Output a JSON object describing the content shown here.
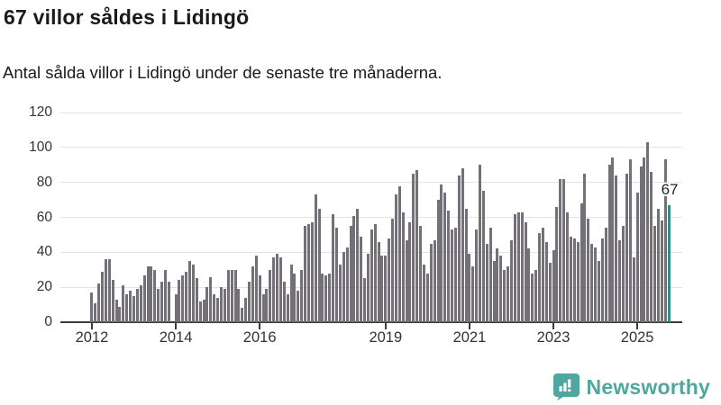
{
  "header": {
    "title": "67 villor såldes i Lidingö",
    "subtitle": "Antal sålda villor i Lidingö under de senaste tre månaderna."
  },
  "chart_data": {
    "type": "bar",
    "title": "67 villor såldes i Lidingö",
    "ylabel": "",
    "xlabel": "",
    "ylim": [
      0,
      120
    ],
    "grid": true,
    "y_ticks": [
      0,
      20,
      40,
      60,
      80,
      100,
      120
    ],
    "x_start": "2012-01",
    "x_ticks": [
      {
        "label": "2012",
        "month_index": 0
      },
      {
        "label": "2014",
        "month_index": 24
      },
      {
        "label": "2016",
        "month_index": 48
      },
      {
        "label": "2019",
        "month_index": 84
      },
      {
        "label": "2021",
        "month_index": 108
      },
      {
        "label": "2023",
        "month_index": 132
      },
      {
        "label": "2025",
        "month_index": 156
      }
    ],
    "values": [
      17,
      11,
      22,
      29,
      36,
      36,
      24,
      13,
      9,
      21,
      16,
      18,
      15,
      19,
      21,
      27,
      32,
      32,
      30,
      19,
      23,
      30,
      23,
      0,
      16,
      24,
      27,
      29,
      35,
      33,
      25,
      12,
      13,
      20,
      26,
      16,
      14,
      20,
      19,
      30,
      30,
      30,
      19,
      8,
      14,
      23,
      32,
      38,
      27,
      16,
      19,
      30,
      37,
      39,
      37,
      23,
      16,
      33,
      28,
      18,
      30,
      55,
      56,
      57,
      73,
      65,
      28,
      27,
      28,
      62,
      54,
      33,
      40,
      43,
      55,
      61,
      65,
      49,
      25,
      39,
      53,
      56,
      46,
      38,
      38,
      48,
      59,
      73,
      78,
      63,
      47,
      57,
      85,
      87,
      55,
      33,
      28,
      45,
      47,
      70,
      79,
      74,
      64,
      53,
      54,
      84,
      88,
      65,
      39,
      32,
      53,
      90,
      75,
      45,
      54,
      35,
      42,
      38,
      30,
      32,
      47,
      62,
      63,
      63,
      57,
      42,
      28,
      30,
      51,
      54,
      46,
      34,
      41,
      66,
      82,
      82,
      63,
      49,
      48,
      46,
      68,
      85,
      59,
      45,
      43,
      35,
      48,
      54,
      90,
      94,
      84,
      47,
      55,
      85,
      93,
      37,
      74,
      89,
      94,
      103,
      86,
      55,
      65,
      58,
      93,
      67
    ],
    "highlight": {
      "index": 165,
      "value_label": "67",
      "color": "#00a3a3"
    },
    "bar_color": "#737078",
    "legend": []
  },
  "footer": {
    "brand": "Newsworthy",
    "logo_color": "#4fa79f"
  }
}
